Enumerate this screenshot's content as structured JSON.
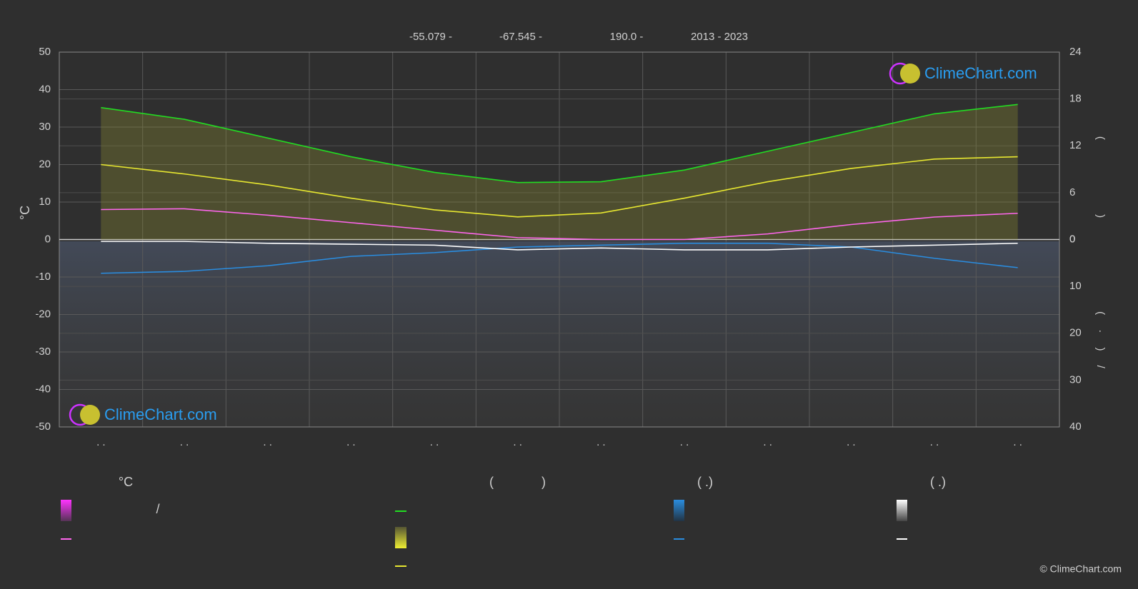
{
  "chart_data": {
    "type": "line",
    "subtitle_parts": [
      "-55.079 -",
      "-67.545 -",
      "190.0 -",
      "2013 - 2023"
    ],
    "ylabel": "°C",
    "y2label": "( )",
    "y3label": "( · ) /",
    "categories": [
      ". .",
      ". .",
      ". .",
      ". .",
      ". .",
      ". .",
      ". .",
      ". .",
      ". .",
      ". .",
      ". .",
      ". ."
    ],
    "ylim": [
      -50,
      50
    ],
    "yticks": [
      -50,
      -40,
      -30,
      -20,
      -10,
      0,
      10,
      20,
      30,
      40,
      50
    ],
    "y2lim": [
      -24,
      24
    ],
    "y2ticks": [
      0,
      6,
      12,
      18,
      24
    ],
    "y3lim": [
      40,
      -40
    ],
    "y3ticks": [
      0,
      10,
      20,
      30,
      40
    ],
    "grid": true,
    "series": [
      {
        "color": "#22dd22",
        "axis": "y2",
        "values": [
          16.9,
          15.4,
          13.0,
          10.6,
          8.6,
          7.3,
          7.4,
          8.9,
          11.3,
          13.7,
          16.1,
          17.3
        ]
      },
      {
        "color": "#e8e830",
        "axis": "y2",
        "values": [
          9.6,
          8.4,
          7.0,
          5.3,
          3.8,
          2.9,
          3.4,
          5.3,
          7.4,
          9.1,
          10.3,
          10.6
        ]
      },
      {
        "color": "#ff66ee",
        "values": [
          8,
          8.2,
          6.5,
          4.5,
          2.5,
          0.5,
          0,
          0,
          1.5,
          4,
          6,
          7
        ]
      },
      {
        "color": "#2a8de0",
        "axis": "y3",
        "values": [
          7.2,
          6.8,
          5.6,
          3.6,
          2.8,
          1.6,
          1.2,
          0.8,
          0.8,
          1.6,
          4.0,
          6.0
        ]
      },
      {
        "color": "#ffffff",
        "axis": "y3",
        "values": [
          0.4,
          0.4,
          0.8,
          1.0,
          1.2,
          2.2,
          1.8,
          2.2,
          2.2,
          1.6,
          1.2,
          0.8
        ]
      }
    ],
    "legend": [
      "°C",
      "(",
      ")",
      "( .)",
      "( .)",
      "/"
    ],
    "logo": "ClimeChart.com",
    "copyright": "© ClimeChart.com"
  }
}
